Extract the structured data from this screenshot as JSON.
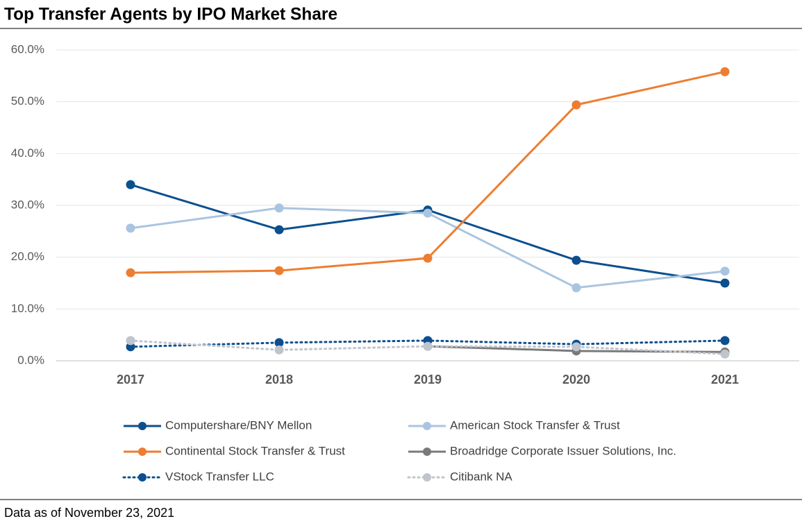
{
  "chart_data": {
    "type": "line",
    "title": "Top Transfer Agents by IPO Market Share",
    "footnote": "Data as of November 23, 2021",
    "categories": [
      "2017",
      "2018",
      "2019",
      "2020",
      "2021"
    ],
    "ylim": [
      0,
      60
    ],
    "yticks": [
      {
        "value": 0,
        "label": "0.0%"
      },
      {
        "value": 10,
        "label": "10.0%"
      },
      {
        "value": 20,
        "label": "20.0%"
      },
      {
        "value": 30,
        "label": "30.0%"
      },
      {
        "value": 40,
        "label": "40.0%"
      },
      {
        "value": 50,
        "label": "50.0%"
      },
      {
        "value": 60,
        "label": "60.0%"
      }
    ],
    "grid": true,
    "legend": "bottom",
    "series": [
      {
        "name": "Computershare/BNY Mellon",
        "color": "#0b4f8f",
        "style": "solid",
        "values": [
          34.0,
          25.3,
          29.1,
          19.4,
          15.0
        ]
      },
      {
        "name": "American Stock Transfer & Trust",
        "color": "#a9c4e0",
        "style": "solid",
        "values": [
          25.6,
          29.5,
          28.5,
          14.1,
          17.3
        ]
      },
      {
        "name": "Continental Stock Transfer & Trust",
        "color": "#ed7d31",
        "style": "solid",
        "values": [
          17.0,
          17.4,
          19.8,
          49.4,
          55.8
        ]
      },
      {
        "name": "Broadridge Corporate Issuer Solutions, Inc.",
        "color": "#7a7a7a",
        "style": "solid",
        "values": [
          null,
          null,
          2.8,
          1.9,
          1.7
        ]
      },
      {
        "name": "VStock Transfer LLC",
        "color": "#0b4f8f",
        "style": "dotted",
        "values": [
          2.7,
          3.5,
          3.9,
          3.2,
          3.9
        ]
      },
      {
        "name": "Citibank NA",
        "color": "#c0c4cc",
        "style": "dotted",
        "values": [
          3.9,
          2.1,
          2.8,
          2.7,
          1.3
        ]
      }
    ]
  }
}
